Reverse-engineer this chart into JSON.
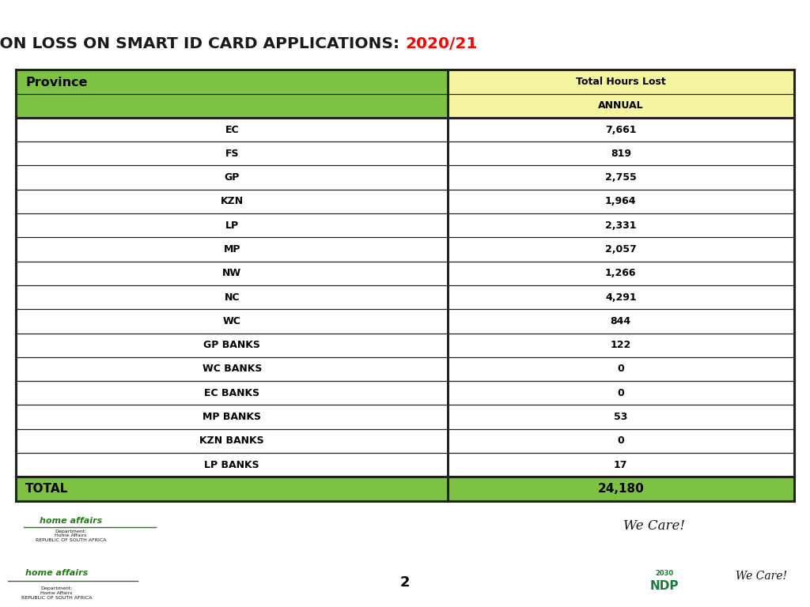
{
  "title_part1": "PRODUCTION LOSS ON SMART ID CARD APPLICATIONS: ",
  "title_part2": "2020/21",
  "title_bg": "#7DC242",
  "title_color1": "#1a1a1a",
  "title_color2": "#FF0000",
  "header_col1": "Province",
  "header_col2": "Total Hours Lost",
  "subheader_col2": "ANNUAL",
  "header_bg": "#7DC242",
  "subheader_bg": "#F5F5A0",
  "provinces": [
    "EC",
    "FS",
    "GP",
    "KZN",
    "LP",
    "MP",
    "NW",
    "NC",
    "WC",
    "GP BANKS",
    "WC BANKS",
    "EC BANKS",
    "MP BANKS",
    "KZN BANKS",
    "LP BANKS"
  ],
  "values": [
    "7,661",
    "819",
    "2,755",
    "1,964",
    "2,331",
    "2,057",
    "1,266",
    "4,291",
    "844",
    "122",
    "0",
    "0",
    "53",
    "0",
    "17"
  ],
  "total_label": "TOTAL",
  "total_value": "24,180",
  "total_bg": "#7DC242",
  "row_bg_white": "#FFFFFF",
  "border_color": "#222222",
  "page_number": "2",
  "green_line_color": "#5BAD2A",
  "outer_bg": "#FFFFFF",
  "col_split": 0.555
}
